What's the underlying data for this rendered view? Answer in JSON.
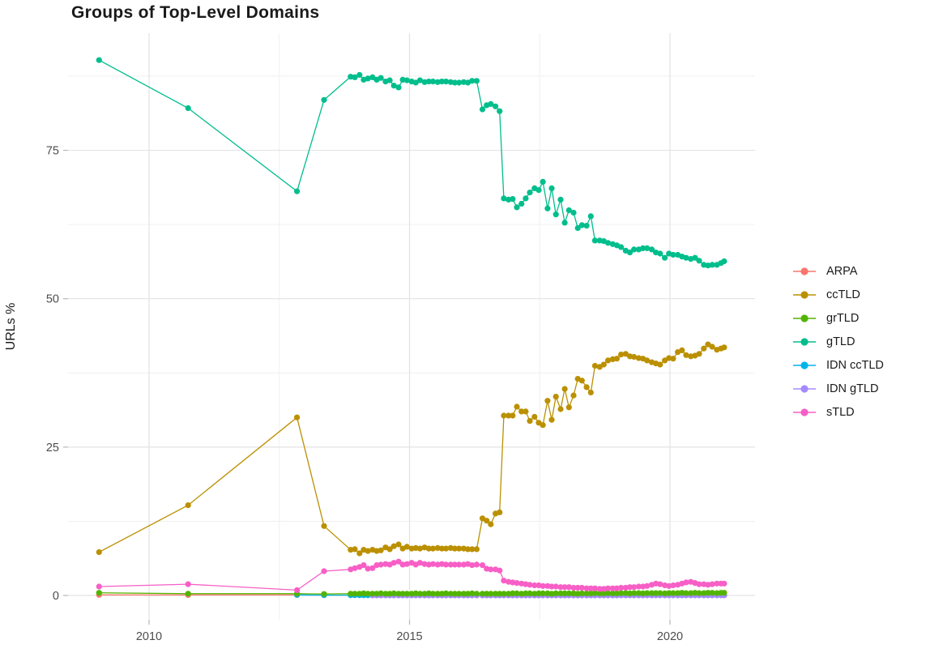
{
  "chart_data": {
    "type": "line",
    "title": "Groups of Top-Level Domains",
    "xlabel": "",
    "ylabel": "URLs %",
    "x_ticks": [
      2010,
      2015,
      2020
    ],
    "x_minor_ticks": [
      2012.5,
      2017.5
    ],
    "y_ticks": [
      0,
      25,
      50,
      75
    ],
    "y_minor_ticks": [
      12.5,
      37.5,
      62.5,
      87.5
    ],
    "xlim": [
      2008.45,
      2021.6
    ],
    "ylim": [
      -4.5,
      94.7
    ],
    "grid": true,
    "legend_position": "right",
    "style": {
      "background": "#ffffff",
      "grid_major": "#e3e3e3",
      "grid_minor": "#f1f1f1",
      "tick_mark": "#b8b8b8",
      "tick_label": "#4d4d4d",
      "title_color": "#1a1a1a"
    },
    "x": [
      2009.04,
      2010.75,
      2012.84,
      2013.36,
      2013.87,
      2013.95,
      2014.04,
      2014.12,
      2014.2,
      2014.29,
      2014.37,
      2014.45,
      2014.54,
      2014.62,
      2014.7,
      2014.79,
      2014.87,
      2014.95,
      2015.04,
      2015.12,
      2015.2,
      2015.29,
      2015.37,
      2015.45,
      2015.54,
      2015.62,
      2015.7,
      2015.79,
      2015.87,
      2015.95,
      2016.04,
      2016.12,
      2016.2,
      2016.29,
      2016.4,
      2016.48,
      2016.56,
      2016.65,
      2016.73,
      2016.81,
      2016.9,
      2016.98,
      2017.06,
      2017.15,
      2017.23,
      2017.31,
      2017.4,
      2017.48,
      2017.56,
      2017.65,
      2017.73,
      2017.81,
      2017.9,
      2017.98,
      2018.06,
      2018.15,
      2018.23,
      2018.31,
      2018.4,
      2018.48,
      2018.56,
      2018.65,
      2018.73,
      2018.81,
      2018.9,
      2018.98,
      2019.06,
      2019.15,
      2019.23,
      2019.31,
      2019.4,
      2019.48,
      2019.56,
      2019.65,
      2019.73,
      2019.81,
      2019.9,
      2019.98,
      2020.06,
      2020.15,
      2020.23,
      2020.31,
      2020.4,
      2020.48,
      2020.56,
      2020.65,
      2020.73,
      2020.81,
      2020.9,
      2020.98,
      2021.04
    ],
    "series": [
      {
        "name": "ARPA",
        "color": "#F8766D",
        "y": [
          0.1,
          0.08,
          0.08,
          0.06,
          0.05,
          0.05,
          0.05,
          0.05,
          0.05,
          0.05,
          0.05,
          0.05,
          0.05,
          0.05,
          0.05,
          0.05,
          0.05,
          0.05,
          0.05,
          0.05,
          0.05,
          0.05,
          0.05,
          0.05,
          0.05,
          0.05,
          0.05,
          0.05,
          0.05,
          0.05,
          0.05,
          0.05,
          0.05,
          0.05,
          0.05,
          0.05,
          0.05,
          0.05,
          0.05,
          0.05,
          0.05,
          0.05,
          0.05,
          0.05,
          0.05,
          0.05,
          0.05,
          0.05,
          0.05,
          0.05,
          0.05,
          0.05,
          0.05,
          0.05,
          0.05,
          0.05,
          0.05,
          0.05,
          0.05,
          0.05,
          0.05,
          0.05,
          0.05,
          0.05,
          0.05,
          0.05,
          0.06,
          0.06,
          0.06,
          0.06,
          0.06,
          0.06,
          0.06,
          0.06,
          0.06,
          0.06,
          0.06,
          0.06,
          0.06,
          0.06,
          0.06,
          0.06,
          0.06,
          0.06,
          0.06,
          0.06,
          0.06,
          0.06,
          0.06,
          0.06,
          0.06
        ]
      },
      {
        "name": "ccTLD",
        "color": "#BB9000",
        "y": [
          7.3,
          15.2,
          30.0,
          11.7,
          7.7,
          7.8,
          7.1,
          7.7,
          7.5,
          7.7,
          7.5,
          7.6,
          8.1,
          7.8,
          8.3,
          8.6,
          7.9,
          8.2,
          7.9,
          8.0,
          7.9,
          8.1,
          7.9,
          7.9,
          8.0,
          7.9,
          7.9,
          8.0,
          7.9,
          7.9,
          7.9,
          7.8,
          7.8,
          7.8,
          13.0,
          12.6,
          12.0,
          13.8,
          14.0,
          30.3,
          30.3,
          30.3,
          31.8,
          31.0,
          31.0,
          29.4,
          30.1,
          29.1,
          28.7,
          32.8,
          29.6,
          33.5,
          31.4,
          34.8,
          31.7,
          33.7,
          36.5,
          36.2,
          35.1,
          34.2,
          38.7,
          38.5,
          38.9,
          39.6,
          39.8,
          39.9,
          40.6,
          40.7,
          40.3,
          40.2,
          40.0,
          39.9,
          39.6,
          39.3,
          39.1,
          38.9,
          39.6,
          40.0,
          39.9,
          41.0,
          41.3,
          40.5,
          40.3,
          40.4,
          40.7,
          41.6,
          42.3,
          41.9,
          41.4,
          41.6,
          41.8
        ]
      },
      {
        "name": "grTLD",
        "color": "#53B400",
        "y": [
          0.45,
          0.3,
          0.3,
          0.25,
          0.3,
          0.3,
          0.3,
          0.35,
          0.3,
          0.3,
          0.3,
          0.35,
          0.3,
          0.3,
          0.35,
          0.3,
          0.3,
          0.3,
          0.3,
          0.35,
          0.3,
          0.3,
          0.35,
          0.3,
          0.3,
          0.3,
          0.35,
          0.3,
          0.3,
          0.3,
          0.3,
          0.3,
          0.35,
          0.3,
          0.3,
          0.3,
          0.3,
          0.3,
          0.3,
          0.3,
          0.3,
          0.35,
          0.35,
          0.3,
          0.35,
          0.35,
          0.3,
          0.35,
          0.35,
          0.35,
          0.3,
          0.35,
          0.35,
          0.35,
          0.35,
          0.35,
          0.3,
          0.35,
          0.35,
          0.35,
          0.4,
          0.35,
          0.35,
          0.4,
          0.35,
          0.35,
          0.4,
          0.4,
          0.35,
          0.4,
          0.4,
          0.35,
          0.4,
          0.4,
          0.4,
          0.4,
          0.35,
          0.4,
          0.4,
          0.4,
          0.45,
          0.4,
          0.4,
          0.45,
          0.4,
          0.4,
          0.45,
          0.45,
          0.4,
          0.45,
          0.45
        ]
      },
      {
        "name": "gTLD",
        "color": "#00BE8C",
        "y": [
          90.2,
          82.1,
          68.1,
          83.5,
          87.4,
          87.3,
          87.7,
          86.9,
          87.1,
          87.3,
          86.9,
          87.2,
          86.6,
          86.8,
          85.9,
          85.6,
          86.9,
          86.8,
          86.6,
          86.4,
          86.8,
          86.5,
          86.6,
          86.6,
          86.5,
          86.6,
          86.6,
          86.5,
          86.4,
          86.4,
          86.5,
          86.4,
          86.7,
          86.7,
          81.9,
          82.6,
          82.8,
          82.4,
          81.6,
          66.9,
          66.7,
          66.8,
          65.4,
          66.0,
          66.9,
          67.9,
          68.6,
          68.3,
          69.7,
          65.2,
          68.6,
          64.2,
          66.7,
          62.8,
          64.9,
          64.5,
          61.9,
          62.4,
          62.3,
          63.9,
          59.8,
          59.8,
          59.7,
          59.4,
          59.2,
          59.0,
          58.7,
          58.1,
          57.8,
          58.3,
          58.3,
          58.5,
          58.5,
          58.3,
          57.8,
          57.6,
          56.9,
          57.6,
          57.4,
          57.4,
          57.1,
          56.9,
          56.7,
          56.9,
          56.4,
          55.7,
          55.6,
          55.7,
          55.7,
          56.0,
          56.3
        ]
      },
      {
        "name": "IDN ccTLD",
        "color": "#00B4EB",
        "y": [
          null,
          null,
          0.1,
          0.06,
          0.05,
          0.05,
          0.04,
          0.04,
          0.04,
          0.04,
          0.04,
          0.04,
          0.04,
          0.04,
          0.04,
          0.04,
          0.04,
          0.04,
          0.04,
          0.04,
          0.04,
          0.04,
          0.04,
          0.04,
          0.04,
          0.04,
          0.04,
          0.04,
          0.04,
          0.04,
          0.04,
          0.04,
          0.04,
          0.04,
          0.04,
          0.04,
          0.04,
          0.04,
          0.04,
          0.04,
          0.04,
          0.04,
          0.04,
          0.04,
          0.04,
          0.04,
          0.04,
          0.04,
          0.04,
          0.04,
          0.04,
          0.04,
          0.04,
          0.04,
          0.04,
          0.04,
          0.04,
          0.04,
          0.04,
          0.04,
          0.04,
          0.04,
          0.04,
          0.04,
          0.04,
          0.04,
          0.04,
          0.04,
          0.04,
          0.04,
          0.04,
          0.04,
          0.04,
          0.04,
          0.04,
          0.04,
          0.04,
          0.04,
          0.04,
          0.04,
          0.04,
          0.04,
          0.04,
          0.04,
          0.04,
          0.04,
          0.04,
          0.04,
          0.04,
          0.04,
          0.04
        ]
      },
      {
        "name": "IDN gTLD",
        "color": "#A58AFF",
        "y": [
          null,
          null,
          null,
          null,
          null,
          null,
          null,
          null,
          null,
          0.02,
          0.02,
          0.02,
          0.02,
          0.02,
          0.02,
          0.02,
          0.02,
          0.02,
          0.02,
          0.02,
          0.02,
          0.02,
          0.02,
          0.02,
          0.02,
          0.02,
          0.02,
          0.02,
          0.02,
          0.02,
          0.02,
          0.02,
          0.02,
          0.02,
          0.02,
          0.02,
          0.02,
          0.02,
          0.02,
          0.02,
          0.02,
          0.02,
          0.02,
          0.02,
          0.02,
          0.02,
          0.02,
          0.02,
          0.02,
          0.02,
          0.02,
          0.02,
          0.02,
          0.02,
          0.02,
          0.02,
          0.02,
          0.02,
          0.02,
          0.02,
          0.02,
          0.02,
          0.02,
          0.02,
          0.02,
          0.02,
          0.03,
          0.03,
          0.03,
          0.03,
          0.03,
          0.03,
          0.03,
          0.03,
          0.03,
          0.03,
          0.03,
          0.03,
          0.03,
          0.03,
          0.03,
          0.03,
          0.03,
          0.03,
          0.03,
          0.03,
          0.03,
          0.03,
          0.03,
          0.03,
          0.03
        ]
      },
      {
        "name": "sTLD",
        "color": "#F75FC6",
        "y": [
          1.5,
          1.9,
          0.9,
          4.1,
          4.4,
          4.6,
          4.8,
          5.1,
          4.5,
          4.6,
          5.1,
          5.2,
          5.3,
          5.2,
          5.5,
          5.7,
          5.2,
          5.3,
          5.5,
          5.2,
          5.5,
          5.3,
          5.2,
          5.3,
          5.2,
          5.3,
          5.2,
          5.2,
          5.2,
          5.2,
          5.2,
          5.3,
          5.1,
          5.2,
          5.1,
          4.5,
          4.4,
          4.4,
          4.2,
          2.5,
          2.3,
          2.2,
          2.1,
          2.0,
          1.9,
          1.8,
          1.7,
          1.7,
          1.6,
          1.6,
          1.5,
          1.5,
          1.4,
          1.4,
          1.4,
          1.3,
          1.3,
          1.3,
          1.2,
          1.2,
          1.2,
          1.1,
          1.1,
          1.2,
          1.2,
          1.2,
          1.3,
          1.3,
          1.4,
          1.4,
          1.5,
          1.5,
          1.6,
          1.8,
          2.0,
          1.9,
          1.7,
          1.6,
          1.7,
          1.8,
          2.0,
          2.2,
          2.3,
          2.1,
          1.9,
          1.9,
          1.8,
          1.9,
          2.0,
          2.0,
          2.0
        ]
      }
    ]
  }
}
